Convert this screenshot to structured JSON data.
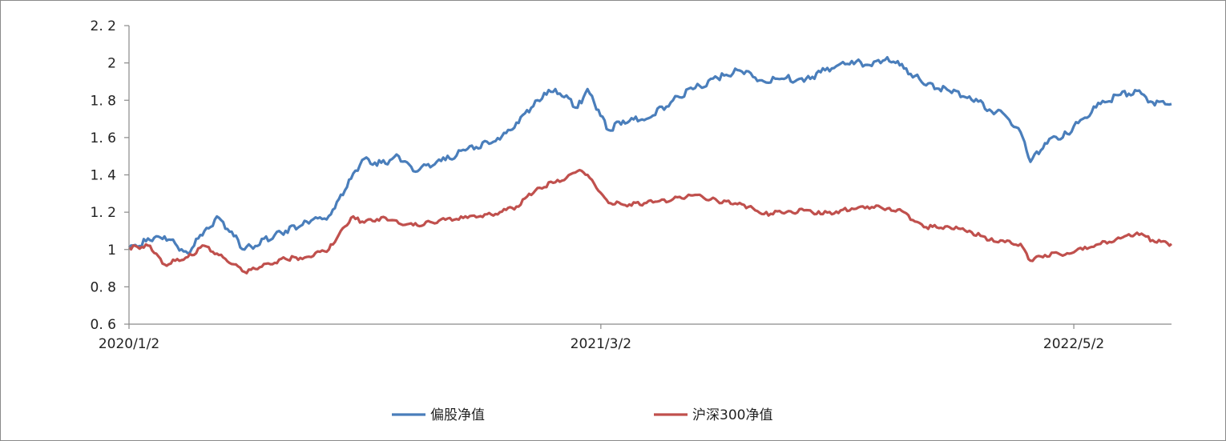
{
  "chart_data": {
    "type": "line",
    "title": "",
    "xlabel": "",
    "ylabel": "",
    "ylim": [
      0.6,
      2.2
    ],
    "y_ticks": [
      0.6,
      0.8,
      1,
      1.2,
      1.4,
      1.6,
      1.8,
      2,
      2.2
    ],
    "y_tick_labels": [
      "0. 6",
      "0. 8",
      "1",
      "1. 2",
      "1. 4",
      "1. 6",
      "1. 8",
      "2",
      "2. 2"
    ],
    "xlim": [
      "2020/1/2",
      "2022/7/29"
    ],
    "x_ticks": [
      "2020/1/2",
      "2021/3/2",
      "2022/5/2"
    ],
    "grid": false,
    "legend_position": "bottom",
    "series": [
      {
        "name": "偏股净值",
        "color": "#4a7ebb",
        "x": [
          "2020/1/2",
          "2020/1/21",
          "2020/2/3",
          "2020/2/24",
          "2020/3/10",
          "2020/3/23",
          "2020/4/15",
          "2020/5/22",
          "2020/6/10",
          "2020/6/30",
          "2020/7/9",
          "2020/7/20",
          "2020/7/30",
          "2020/8/20",
          "2020/9/1",
          "2020/9/14",
          "2020/10/13",
          "2020/11/2",
          "2020/12/1",
          "2020/12/16",
          "2021/1/4",
          "2021/1/20",
          "2021/2/9",
          "2021/2/18",
          "2021/2/26",
          "2021/3/9",
          "2021/3/22",
          "2021/4/12",
          "2021/5/6",
          "2021/5/24",
          "2021/6/15",
          "2021/7/5",
          "2021/7/27",
          "2021/8/16",
          "2021/9/1",
          "2021/9/16",
          "2021/10/14",
          "2021/10/28",
          "2021/11/15",
          "2021/11/30",
          "2021/12/10",
          "2021/12/20",
          "2022/1/10",
          "2022/1/28",
          "2022/2/15",
          "2022/3/1",
          "2022/3/15",
          "2022/3/24",
          "2022/4/6",
          "2022/4/26",
          "2022/5/10",
          "2022/5/26",
          "2022/6/13",
          "2022/6/28",
          "2022/7/12",
          "2022/7/29"
        ],
        "y": [
          1.01,
          1.05,
          1.07,
          0.98,
          1.1,
          1.17,
          1.0,
          1.1,
          1.15,
          1.18,
          1.27,
          1.38,
          1.48,
          1.46,
          1.5,
          1.42,
          1.48,
          1.54,
          1.59,
          1.68,
          1.8,
          1.86,
          1.76,
          1.86,
          1.75,
          1.64,
          1.69,
          1.7,
          1.8,
          1.86,
          1.92,
          1.96,
          1.9,
          1.92,
          1.9,
          1.95,
          2.01,
          1.99,
          2.03,
          1.97,
          1.93,
          1.88,
          1.85,
          1.82,
          1.75,
          1.72,
          1.63,
          1.47,
          1.57,
          1.62,
          1.7,
          1.78,
          1.83,
          1.85,
          1.79,
          1.78
        ]
      },
      {
        "name": "沪深300净值",
        "color": "#c0504d",
        "x": [
          "2020/1/2",
          "2020/1/21",
          "2020/2/3",
          "2020/2/24",
          "2020/3/10",
          "2020/3/23",
          "2020/4/15",
          "2020/5/22",
          "2020/6/10",
          "2020/6/30",
          "2020/7/9",
          "2020/7/20",
          "2020/7/30",
          "2020/8/20",
          "2020/9/1",
          "2020/9/14",
          "2020/10/13",
          "2020/11/2",
          "2020/12/1",
          "2020/12/16",
          "2021/1/4",
          "2021/1/20",
          "2021/2/9",
          "2021/2/18",
          "2021/2/26",
          "2021/3/9",
          "2021/3/22",
          "2021/4/12",
          "2021/5/6",
          "2021/5/24",
          "2021/6/15",
          "2021/7/5",
          "2021/7/27",
          "2021/8/16",
          "2021/9/1",
          "2021/9/16",
          "2021/10/14",
          "2021/10/28",
          "2021/11/15",
          "2021/11/30",
          "2021/12/10",
          "2021/12/20",
          "2022/1/10",
          "2022/1/28",
          "2022/2/15",
          "2022/3/1",
          "2022/3/15",
          "2022/3/24",
          "2022/4/6",
          "2022/4/26",
          "2022/5/10",
          "2022/5/26",
          "2022/6/13",
          "2022/6/28",
          "2022/7/12",
          "2022/7/29"
        ],
        "y": [
          1.01,
          1.02,
          0.92,
          0.96,
          1.02,
          0.97,
          0.88,
          0.95,
          0.96,
          1.0,
          1.08,
          1.17,
          1.15,
          1.17,
          1.14,
          1.13,
          1.16,
          1.17,
          1.2,
          1.23,
          1.33,
          1.36,
          1.42,
          1.4,
          1.33,
          1.25,
          1.24,
          1.25,
          1.27,
          1.29,
          1.26,
          1.25,
          1.19,
          1.2,
          1.21,
          1.19,
          1.22,
          1.23,
          1.22,
          1.2,
          1.15,
          1.12,
          1.12,
          1.1,
          1.05,
          1.04,
          1.03,
          0.94,
          0.97,
          0.98,
          1.0,
          1.03,
          1.06,
          1.09,
          1.05,
          1.03
        ]
      }
    ]
  }
}
